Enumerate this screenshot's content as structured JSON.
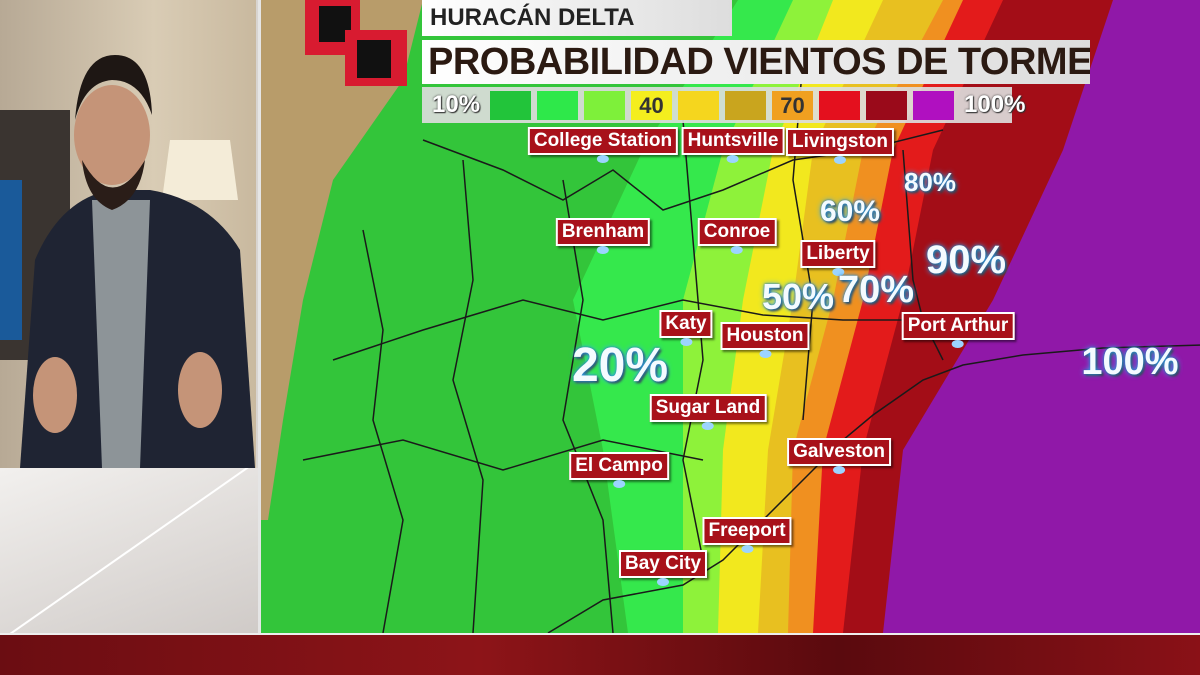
{
  "header": {
    "title": "HURACÁN DELTA",
    "subtitle": "PROBABILIDAD VIENTOS DE TORMENTA"
  },
  "legend": {
    "min_label": "10%",
    "max_label": "100%",
    "swatches": [
      {
        "color": "#22c43a",
        "label": ""
      },
      {
        "color": "#2ee84a",
        "label": ""
      },
      {
        "color": "#7ef03a",
        "label": ""
      },
      {
        "color": "#f4ee1e",
        "label": "40"
      },
      {
        "color": "#f5d61e",
        "label": ""
      },
      {
        "color": "#c9a51e",
        "label": ""
      },
      {
        "color": "#f0a020",
        "label": "70"
      },
      {
        "color": "#e4101e",
        "label": ""
      },
      {
        "color": "#9a0a1a",
        "label": ""
      },
      {
        "color": "#b010c0",
        "label": ""
      }
    ]
  },
  "map": {
    "cities": [
      {
        "name": "College Station"
      },
      {
        "name": "Huntsville"
      },
      {
        "name": "Livingston"
      },
      {
        "name": "Brenham"
      },
      {
        "name": "Conroe"
      },
      {
        "name": "Liberty"
      },
      {
        "name": "Katy"
      },
      {
        "name": "Houston"
      },
      {
        "name": "Port Arthur"
      },
      {
        "name": "Sugar Land"
      },
      {
        "name": "El Campo"
      },
      {
        "name": "Galveston"
      },
      {
        "name": "Freeport"
      },
      {
        "name": "Bay City"
      }
    ],
    "probability_labels": [
      "20%",
      "50%",
      "60%",
      "70%",
      "80%",
      "90%",
      "100%"
    ],
    "band_colors": [
      "#33c53a",
      "#35e84c",
      "#8ef23a",
      "#f2e81e",
      "#e8c020",
      "#f09020",
      "#e31b1b",
      "#a30d17",
      "#9018a8"
    ]
  }
}
